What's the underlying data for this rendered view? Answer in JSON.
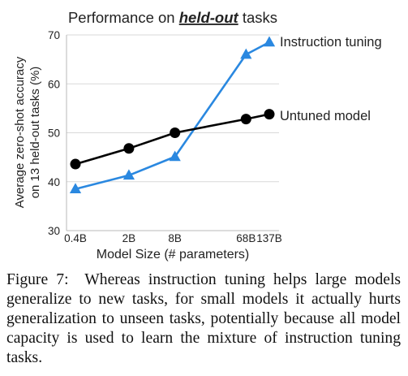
{
  "chart_data": {
    "type": "line",
    "title_prefix": "Performance on ",
    "title_emphasis": "held-out",
    "title_suffix": " tasks",
    "xlabel": "Model Size (# parameters)",
    "ylabel_line1": "Average zero-shot accuracy",
    "ylabel_line2": "on 13 held-out tasks (%)",
    "categories": [
      "0.4B",
      "2B",
      "8B",
      "68B",
      "137B"
    ],
    "x": [
      0.4,
      2,
      8,
      68,
      137
    ],
    "x_scale": "log",
    "ylim": [
      30,
      70
    ],
    "yticks": [
      30,
      40,
      50,
      60,
      70
    ],
    "grid": "horizontal",
    "series": [
      {
        "name": "Instruction tuning",
        "values": [
          38.5,
          41.3,
          45.1,
          66.0,
          68.5
        ],
        "color": "#2a88e0",
        "label_color": "#2a5dab",
        "marker": "triangle"
      },
      {
        "name": "Untuned model",
        "values": [
          43.6,
          46.8,
          50.0,
          52.8,
          53.8
        ],
        "color": "#000000",
        "label_color": "#111111",
        "marker": "circle"
      }
    ]
  },
  "caption": {
    "label": "Figure 7:",
    "text": "Whereas instruction tuning helps large models generalize to new tasks, for small models it actually hurts generalization to unseen tasks, poten­tially because all model capacity is used to learn the mixture of instruction tuning tasks."
  }
}
